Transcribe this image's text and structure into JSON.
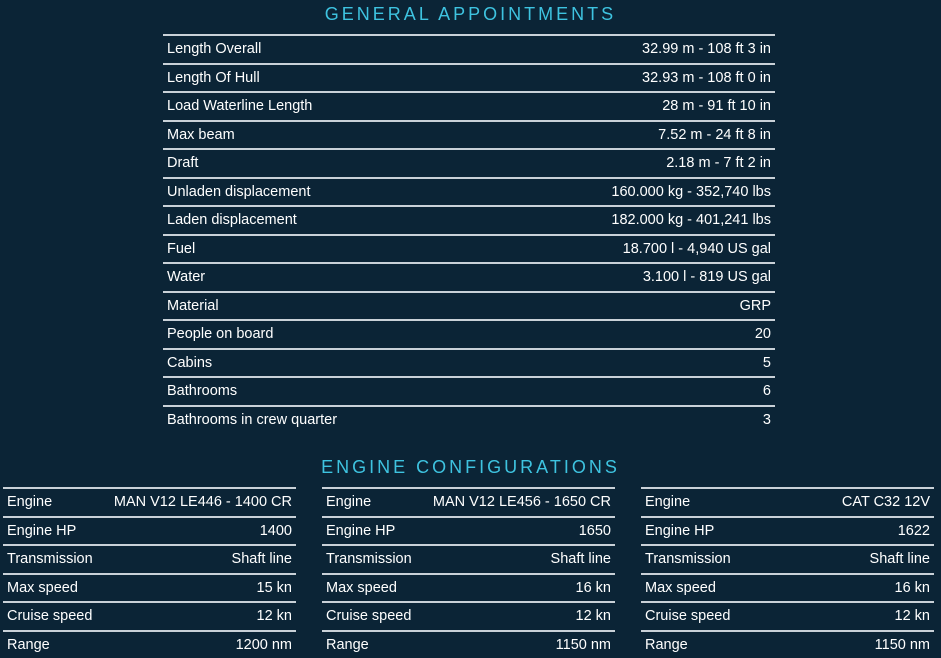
{
  "general": {
    "title": "GENERAL APPOINTMENTS",
    "rows": [
      {
        "label": "Length Overall",
        "value": "32.99 m - 108 ft 3 in"
      },
      {
        "label": "Length Of Hull",
        "value": "32.93 m - 108 ft 0 in"
      },
      {
        "label": "Load Waterline Length",
        "value": "28 m - 91 ft 10 in"
      },
      {
        "label": "Max beam",
        "value": "7.52 m - 24 ft 8 in"
      },
      {
        "label": "Draft",
        "value": "2.18 m - 7 ft 2 in"
      },
      {
        "label": "Unladen displacement",
        "value": "160.000 kg - 352,740 lbs"
      },
      {
        "label": "Laden displacement",
        "value": "182.000 kg - 401,241 lbs"
      },
      {
        "label": "Fuel",
        "value": "18.700 l - 4,940 US gal"
      },
      {
        "label": "Water",
        "value": "3.100 l - 819 US gal"
      },
      {
        "label": "Material",
        "value": "GRP"
      },
      {
        "label": "People on board",
        "value": "20"
      },
      {
        "label": "Cabins",
        "value": "5"
      },
      {
        "label": "Bathrooms",
        "value": "6"
      },
      {
        "label": "Bathrooms in crew quarter",
        "value": "3"
      }
    ]
  },
  "engines": {
    "title": "ENGINE CONFIGURATIONS",
    "configs": [
      {
        "rows": [
          {
            "label": "Engine",
            "value": "MAN V12 LE446 - 1400 CR"
          },
          {
            "label": "Engine HP",
            "value": "1400"
          },
          {
            "label": "Transmission",
            "value": "Shaft line"
          },
          {
            "label": "Max speed",
            "value": "15 kn"
          },
          {
            "label": "Cruise speed",
            "value": "12 kn"
          },
          {
            "label": "Range",
            "value": "1200 nm"
          }
        ]
      },
      {
        "rows": [
          {
            "label": "Engine",
            "value": "MAN V12 LE456 - 1650 CR"
          },
          {
            "label": "Engine HP",
            "value": "1650"
          },
          {
            "label": "Transmission",
            "value": "Shaft line"
          },
          {
            "label": "Max speed",
            "value": "16 kn"
          },
          {
            "label": "Cruise speed",
            "value": "12 kn"
          },
          {
            "label": "Range",
            "value": "1150 nm"
          }
        ]
      },
      {
        "rows": [
          {
            "label": "Engine",
            "value": "CAT C32 12V"
          },
          {
            "label": "Engine HP",
            "value": "1622"
          },
          {
            "label": "Transmission",
            "value": "Shaft line"
          },
          {
            "label": "Max speed",
            "value": "16 kn"
          },
          {
            "label": "Cruise speed",
            "value": "12 kn"
          },
          {
            "label": "Range",
            "value": "1150 nm"
          }
        ]
      }
    ]
  }
}
